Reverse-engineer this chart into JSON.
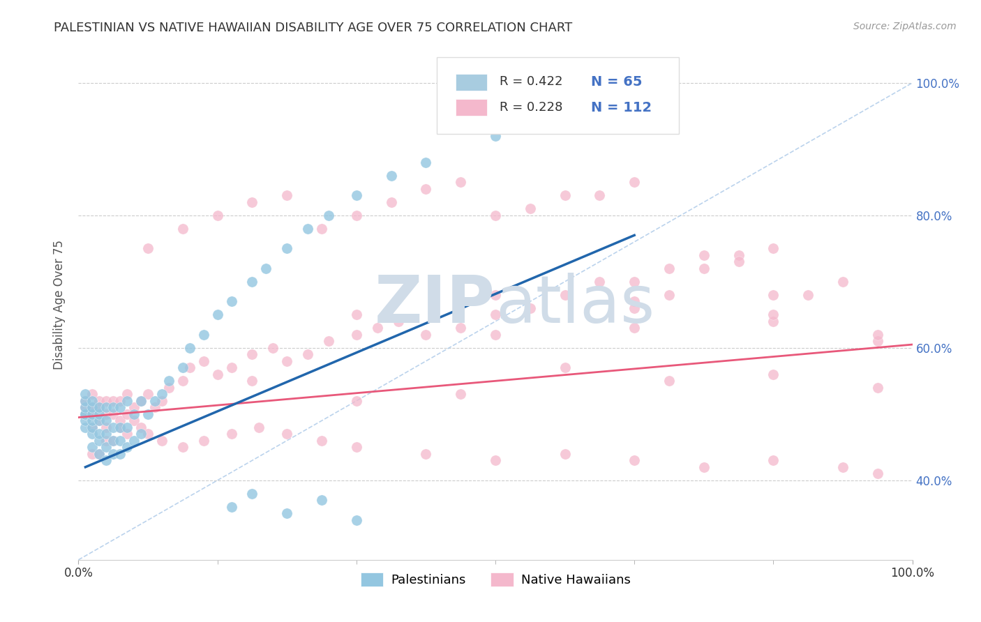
{
  "title": "PALESTINIAN VS NATIVE HAWAIIAN DISABILITY AGE OVER 75 CORRELATION CHART",
  "source": "Source: ZipAtlas.com",
  "ylabel": "Disability Age Over 75",
  "xlim": [
    0.0,
    0.12
  ],
  "ylim": [
    0.28,
    1.05
  ],
  "color_palestinian": "#93c6e0",
  "color_hawaiian": "#f4b8cc",
  "color_trend_palestinian": "#2166ac",
  "color_trend_hawaiian": "#e8587a",
  "color_diagonal": "#a8c8e8",
  "background_color": "#ffffff",
  "watermark_color": "#d0dce8",
  "legend_r1": "R = 0.422",
  "legend_n1": "N = 65",
  "legend_r2": "R = 0.228",
  "legend_n2": "N = 112",
  "pal_x": [
    0.001,
    0.001,
    0.001,
    0.001,
    0.001,
    0.001,
    0.001,
    0.002,
    0.002,
    0.002,
    0.002,
    0.002,
    0.002,
    0.002,
    0.003,
    0.003,
    0.003,
    0.003,
    0.003,
    0.003,
    0.004,
    0.004,
    0.004,
    0.004,
    0.004,
    0.005,
    0.005,
    0.005,
    0.005,
    0.006,
    0.006,
    0.006,
    0.006,
    0.007,
    0.007,
    0.007,
    0.008,
    0.008,
    0.009,
    0.009,
    0.01,
    0.011,
    0.012,
    0.013,
    0.015,
    0.016,
    0.018,
    0.02,
    0.022,
    0.025,
    0.027,
    0.03,
    0.033,
    0.036,
    0.04,
    0.045,
    0.05,
    0.06,
    0.07,
    0.08,
    0.022,
    0.025,
    0.03,
    0.035,
    0.04
  ],
  "pal_y": [
    0.48,
    0.49,
    0.5,
    0.5,
    0.51,
    0.52,
    0.53,
    0.45,
    0.47,
    0.48,
    0.49,
    0.5,
    0.51,
    0.52,
    0.44,
    0.46,
    0.47,
    0.49,
    0.5,
    0.51,
    0.43,
    0.45,
    0.47,
    0.49,
    0.51,
    0.44,
    0.46,
    0.48,
    0.51,
    0.44,
    0.46,
    0.48,
    0.51,
    0.45,
    0.48,
    0.52,
    0.46,
    0.5,
    0.47,
    0.52,
    0.5,
    0.52,
    0.53,
    0.55,
    0.57,
    0.6,
    0.62,
    0.65,
    0.67,
    0.7,
    0.72,
    0.75,
    0.78,
    0.8,
    0.83,
    0.86,
    0.88,
    0.92,
    0.95,
    0.98,
    0.36,
    0.38,
    0.35,
    0.37,
    0.34
  ],
  "haw_x": [
    0.001,
    0.001,
    0.001,
    0.002,
    0.002,
    0.002,
    0.002,
    0.003,
    0.003,
    0.003,
    0.004,
    0.004,
    0.004,
    0.005,
    0.005,
    0.006,
    0.006,
    0.007,
    0.007,
    0.008,
    0.009,
    0.01,
    0.011,
    0.012,
    0.013,
    0.015,
    0.016,
    0.018,
    0.02,
    0.022,
    0.025,
    0.028,
    0.03,
    0.033,
    0.036,
    0.04,
    0.043,
    0.046,
    0.05,
    0.055,
    0.06,
    0.065,
    0.07,
    0.075,
    0.08,
    0.085,
    0.09,
    0.095,
    0.01,
    0.015,
    0.02,
    0.025,
    0.03,
    0.035,
    0.04,
    0.045,
    0.05,
    0.055,
    0.06,
    0.065,
    0.07,
    0.075,
    0.08,
    0.085,
    0.09,
    0.095,
    0.1,
    0.105,
    0.11,
    0.002,
    0.003,
    0.004,
    0.005,
    0.006,
    0.007,
    0.008,
    0.009,
    0.01,
    0.012,
    0.015,
    0.018,
    0.022,
    0.026,
    0.03,
    0.035,
    0.04,
    0.05,
    0.06,
    0.07,
    0.08,
    0.09,
    0.1,
    0.11,
    0.115,
    0.025,
    0.04,
    0.055,
    0.07,
    0.085,
    0.1,
    0.115,
    0.04,
    0.06,
    0.08,
    0.1,
    0.115,
    0.06,
    0.08,
    0.1,
    0.115,
    0.08,
    0.1
  ],
  "haw_y": [
    0.5,
    0.51,
    0.52,
    0.48,
    0.5,
    0.51,
    0.53,
    0.49,
    0.51,
    0.52,
    0.48,
    0.5,
    0.52,
    0.5,
    0.52,
    0.49,
    0.52,
    0.5,
    0.53,
    0.51,
    0.52,
    0.53,
    0.51,
    0.52,
    0.54,
    0.55,
    0.57,
    0.58,
    0.56,
    0.57,
    0.59,
    0.6,
    0.58,
    0.59,
    0.61,
    0.62,
    0.63,
    0.64,
    0.62,
    0.63,
    0.65,
    0.66,
    0.68,
    0.7,
    0.67,
    0.68,
    0.72,
    0.74,
    0.75,
    0.78,
    0.8,
    0.82,
    0.83,
    0.78,
    0.8,
    0.82,
    0.84,
    0.85,
    0.8,
    0.81,
    0.83,
    0.83,
    0.85,
    0.72,
    0.74,
    0.73,
    0.75,
    0.68,
    0.7,
    0.44,
    0.44,
    0.46,
    0.46,
    0.48,
    0.47,
    0.49,
    0.48,
    0.47,
    0.46,
    0.45,
    0.46,
    0.47,
    0.48,
    0.47,
    0.46,
    0.45,
    0.44,
    0.43,
    0.44,
    0.43,
    0.42,
    0.43,
    0.42,
    0.41,
    0.55,
    0.52,
    0.53,
    0.57,
    0.55,
    0.56,
    0.54,
    0.65,
    0.62,
    0.63,
    0.64,
    0.61,
    0.68,
    0.66,
    0.65,
    0.62,
    0.7,
    0.68
  ],
  "pal_trend_x": [
    0.001,
    0.08
  ],
  "pal_trend_y": [
    0.42,
    0.77
  ],
  "haw_trend_x": [
    0.0,
    0.12
  ],
  "haw_trend_y": [
    0.495,
    0.605
  ]
}
